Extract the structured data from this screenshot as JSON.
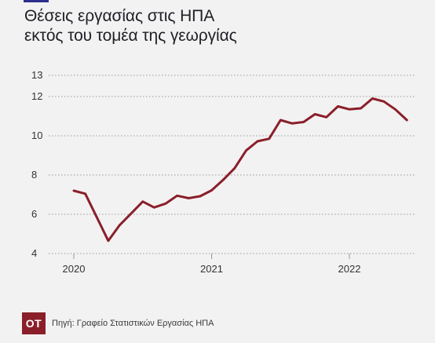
{
  "title_line1": "Θέσεις εργασίας στις ΗΠΑ",
  "title_line2": "εκτός του  τομέα της γεωργίας",
  "footer": {
    "logo_text": "ΟΤ",
    "source": "Πηγή: Γραφείο Στατιστικών Εργασίας ΗΠΑ"
  },
  "colors": {
    "line": "#8a1f2a",
    "logo_bg": "#8a1f2a",
    "title_rule": "#2c2f8c",
    "background": "#f3f2f2"
  },
  "chart_data": {
    "type": "line",
    "title": "Θέσεις εργασίας στις ΗΠΑ εκτός του  τομέα της γεωργίας",
    "xlabel": "",
    "ylabel": "",
    "ylim": [
      4,
      13
    ],
    "xlim": [
      2020.0,
      2022.5
    ],
    "yticks": [
      4,
      6,
      8,
      10,
      12,
      13
    ],
    "xticks": [
      2020,
      2021,
      2022
    ],
    "grid": "horizontal-dotted",
    "x": [
      2020.0,
      2020.083,
      2020.167,
      2020.25,
      2020.333,
      2020.417,
      2020.5,
      2020.583,
      2020.667,
      2020.75,
      2020.833,
      2020.917,
      2021.0,
      2021.083,
      2021.167,
      2021.25,
      2021.333,
      2021.417,
      2021.5,
      2021.583,
      2021.667,
      2021.75,
      2021.833,
      2021.917,
      2022.0,
      2022.083,
      2022.167,
      2022.25,
      2022.333,
      2022.417
    ],
    "series": [
      {
        "values": [
          7.2,
          7.05,
          5.85,
          4.65,
          5.45,
          6.05,
          6.65,
          6.35,
          6.55,
          6.95,
          6.82,
          6.92,
          7.22,
          7.75,
          8.35,
          9.25,
          9.72,
          9.85,
          10.8,
          10.63,
          10.7,
          11.1,
          10.95,
          11.5,
          11.35,
          11.4,
          11.9,
          11.75,
          11.35,
          10.8
        ]
      }
    ]
  }
}
